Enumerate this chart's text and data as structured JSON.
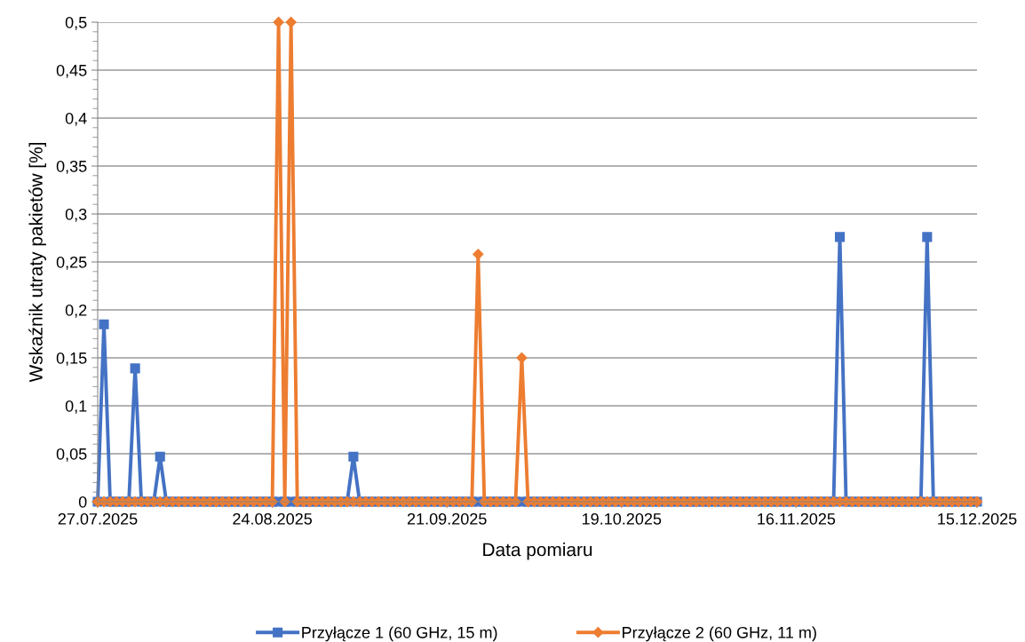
{
  "chart_data": {
    "type": "line",
    "xlabel": "Data pomiaru",
    "ylabel": "Wskaźnik utraty pakietów [%]",
    "x": [
      "2025-07-27",
      "2025-07-28",
      "2025-07-29",
      "2025-07-30",
      "2025-07-31",
      "2025-08-01",
      "2025-08-02",
      "2025-08-03",
      "2025-08-04",
      "2025-08-05",
      "2025-08-06",
      "2025-08-07",
      "2025-08-08",
      "2025-08-09",
      "2025-08-10",
      "2025-08-11",
      "2025-08-12",
      "2025-08-13",
      "2025-08-14",
      "2025-08-15",
      "2025-08-16",
      "2025-08-17",
      "2025-08-18",
      "2025-08-19",
      "2025-08-20",
      "2025-08-21",
      "2025-08-22",
      "2025-08-23",
      "2025-08-24",
      "2025-08-25",
      "2025-08-26",
      "2025-08-27",
      "2025-08-28",
      "2025-08-29",
      "2025-08-30",
      "2025-08-31",
      "2025-09-01",
      "2025-09-02",
      "2025-09-03",
      "2025-09-04",
      "2025-09-05",
      "2025-09-06",
      "2025-09-07",
      "2025-09-08",
      "2025-09-09",
      "2025-09-10",
      "2025-09-11",
      "2025-09-12",
      "2025-09-13",
      "2025-09-14",
      "2025-09-15",
      "2025-09-16",
      "2025-09-17",
      "2025-09-18",
      "2025-09-19",
      "2025-09-20",
      "2025-09-21",
      "2025-09-22",
      "2025-09-23",
      "2025-09-24",
      "2025-09-25",
      "2025-09-26",
      "2025-09-27",
      "2025-09-28",
      "2025-09-29",
      "2025-09-30",
      "2025-10-01",
      "2025-10-02",
      "2025-10-03",
      "2025-10-04",
      "2025-10-05",
      "2025-10-06",
      "2025-10-07",
      "2025-10-08",
      "2025-10-09",
      "2025-10-10",
      "2025-10-11",
      "2025-10-12",
      "2025-10-13",
      "2025-10-14",
      "2025-10-15",
      "2025-10-16",
      "2025-10-17",
      "2025-10-18",
      "2025-10-19",
      "2025-10-20",
      "2025-10-21",
      "2025-10-22",
      "2025-10-23",
      "2025-10-24",
      "2025-10-25",
      "2025-10-26",
      "2025-10-27",
      "2025-10-28",
      "2025-10-29",
      "2025-10-30",
      "2025-10-31",
      "2025-11-01",
      "2025-11-02",
      "2025-11-03",
      "2025-11-04",
      "2025-11-05",
      "2025-11-06",
      "2025-11-07",
      "2025-11-08",
      "2025-11-09",
      "2025-11-10",
      "2025-11-11",
      "2025-11-12",
      "2025-11-13",
      "2025-11-14",
      "2025-11-15",
      "2025-11-16",
      "2025-11-17",
      "2025-11-18",
      "2025-11-19",
      "2025-11-20",
      "2025-11-21",
      "2025-11-22",
      "2025-11-23",
      "2025-11-24",
      "2025-11-25",
      "2025-11-26",
      "2025-11-27",
      "2025-11-28",
      "2025-11-29",
      "2025-11-30",
      "2025-12-01",
      "2025-12-02",
      "2025-12-03",
      "2025-12-04",
      "2025-12-05",
      "2025-12-06",
      "2025-12-07",
      "2025-12-08",
      "2025-12-09",
      "2025-12-10",
      "2025-12-11",
      "2025-12-12",
      "2025-12-13",
      "2025-12-14",
      "2025-12-15"
    ],
    "series": [
      {
        "name": "Przyłącze 1 (60 GHz, 15 m)",
        "color": "#4472c4",
        "marker": "square",
        "values": [
          0,
          0.185,
          0,
          0,
          0,
          0,
          0.139,
          0,
          0,
          0,
          0.047,
          0,
          0,
          0,
          0,
          0,
          0,
          0,
          0,
          0,
          0,
          0,
          0,
          0,
          0,
          0,
          0,
          0,
          0,
          0,
          0,
          0,
          0,
          0,
          0,
          0,
          0,
          0,
          0,
          0,
          0,
          0.047,
          0,
          0,
          0,
          0,
          0,
          0,
          0,
          0,
          0,
          0,
          0,
          0,
          0,
          0,
          0,
          0,
          0,
          0,
          0,
          0,
          0,
          0,
          0,
          0,
          0,
          0,
          0,
          0,
          0,
          0,
          0,
          0,
          0,
          0,
          0,
          0,
          0,
          0,
          0,
          0,
          0,
          0,
          0,
          0,
          0,
          0,
          0,
          0,
          0,
          0,
          0,
          0,
          0,
          0,
          0,
          0,
          0,
          0,
          0,
          0,
          0,
          0,
          0,
          0,
          0,
          0,
          0,
          0,
          0,
          0,
          0,
          0,
          0,
          0,
          0,
          0,
          0,
          0.276,
          0,
          0,
          0,
          0,
          0,
          0,
          0,
          0,
          0,
          0,
          0,
          0,
          0,
          0.276,
          0,
          0,
          0,
          0,
          0,
          0,
          0,
          0
        ]
      },
      {
        "name": "Przyłącze 2 (60 GHz, 11 m)",
        "color": "#ed7d31",
        "marker": "diamond",
        "values": [
          0,
          0,
          0,
          0,
          0,
          0,
          0,
          0,
          0,
          0,
          0,
          0,
          0,
          0,
          0,
          0,
          0,
          0,
          0,
          0,
          0,
          0,
          0,
          0,
          0,
          0,
          0,
          0,
          0,
          0.5,
          0,
          0.5,
          0,
          0,
          0,
          0,
          0,
          0,
          0,
          0,
          0,
          0,
          0,
          0,
          0,
          0,
          0,
          0,
          0,
          0,
          0,
          0,
          0,
          0,
          0,
          0,
          0,
          0,
          0,
          0,
          0,
          0.258,
          0,
          0,
          0,
          0,
          0,
          0,
          0.15,
          0,
          0,
          0,
          0,
          0,
          0,
          0,
          0,
          0,
          0,
          0,
          0,
          0,
          0,
          0,
          0,
          0,
          0,
          0,
          0,
          0,
          0,
          0,
          0,
          0,
          0,
          0,
          0,
          0,
          0,
          0,
          0,
          0,
          0,
          0,
          0,
          0,
          0,
          0,
          0,
          0,
          0,
          0,
          0,
          0,
          0,
          0,
          0,
          0,
          0,
          0,
          0,
          0,
          0,
          0,
          0,
          0,
          0,
          0,
          0,
          0,
          0,
          0,
          0,
          0,
          0,
          0,
          0,
          0,
          0,
          0,
          0,
          0
        ]
      }
    ],
    "xlim": [
      "2025-07-27",
      "2025-12-15"
    ],
    "xticks": [
      {
        "value": "2025-07-27",
        "label": "27.07.2025"
      },
      {
        "value": "2025-08-24",
        "label": "24.08.2025"
      },
      {
        "value": "2025-09-21",
        "label": "21.09.2025"
      },
      {
        "value": "2025-10-19",
        "label": "19.10.2025"
      },
      {
        "value": "2025-11-16",
        "label": "16.11.2025"
      },
      {
        "value": "2025-12-15",
        "label": "15.12.2025"
      }
    ],
    "ylim": [
      0,
      0.5
    ],
    "yticks": [
      {
        "value": 0,
        "label": "0"
      },
      {
        "value": 0.05,
        "label": "0,05"
      },
      {
        "value": 0.1,
        "label": "0,1"
      },
      {
        "value": 0.15,
        "label": "0,15"
      },
      {
        "value": 0.2,
        "label": "0,2"
      },
      {
        "value": 0.25,
        "label": "0,25"
      },
      {
        "value": 0.3,
        "label": "0,3"
      },
      {
        "value": 0.35,
        "label": "0,35"
      },
      {
        "value": 0.4,
        "label": "0,4"
      },
      {
        "value": 0.45,
        "label": "0,45"
      },
      {
        "value": 0.5,
        "label": "0,5"
      }
    ],
    "grid": "y",
    "legend": "bottom",
    "line_style": "solid"
  }
}
